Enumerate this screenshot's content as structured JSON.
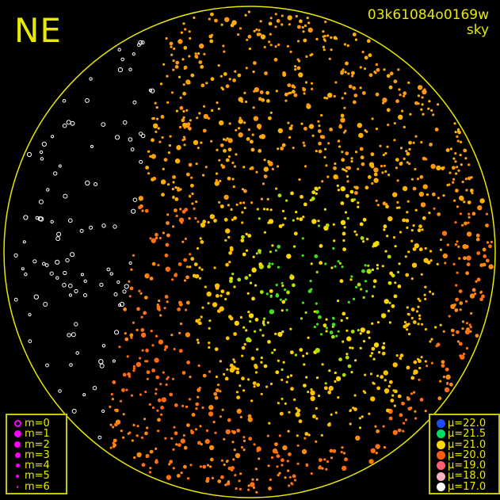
{
  "chart_data": {
    "type": "scatter",
    "title": "NE",
    "field_id": "03k61084o0169w",
    "subtitle": "sky",
    "projection": "all-sky circular (zenith-centered)",
    "grid": false,
    "magnitude_legend": {
      "placement": "bottom-left",
      "color": "#ff00ff",
      "entries": [
        {
          "label": "m=0",
          "hollow": true
        },
        {
          "label": "m=1"
        },
        {
          "label": "m=2"
        },
        {
          "label": "m=3"
        },
        {
          "label": "m=4"
        },
        {
          "label": "m=5"
        },
        {
          "label": "m=6"
        }
      ]
    },
    "brightness_legend": {
      "placement": "bottom-right",
      "entries": [
        {
          "label": "μ=22.0",
          "color": "#1a4dff"
        },
        {
          "label": "μ=21.5",
          "color": "#00e060"
        },
        {
          "label": "μ=21.0",
          "color": "#ffd800"
        },
        {
          "label": "μ=20.0",
          "color": "#ff5a10"
        },
        {
          "label": "μ=19.0",
          "color": "#ff6070"
        },
        {
          "label": "μ=18.0",
          "color": "#ffb0c0"
        },
        {
          "label": "μ=17.0",
          "color": "#ffffff"
        }
      ]
    },
    "horizon_color": "#e8e800"
  }
}
